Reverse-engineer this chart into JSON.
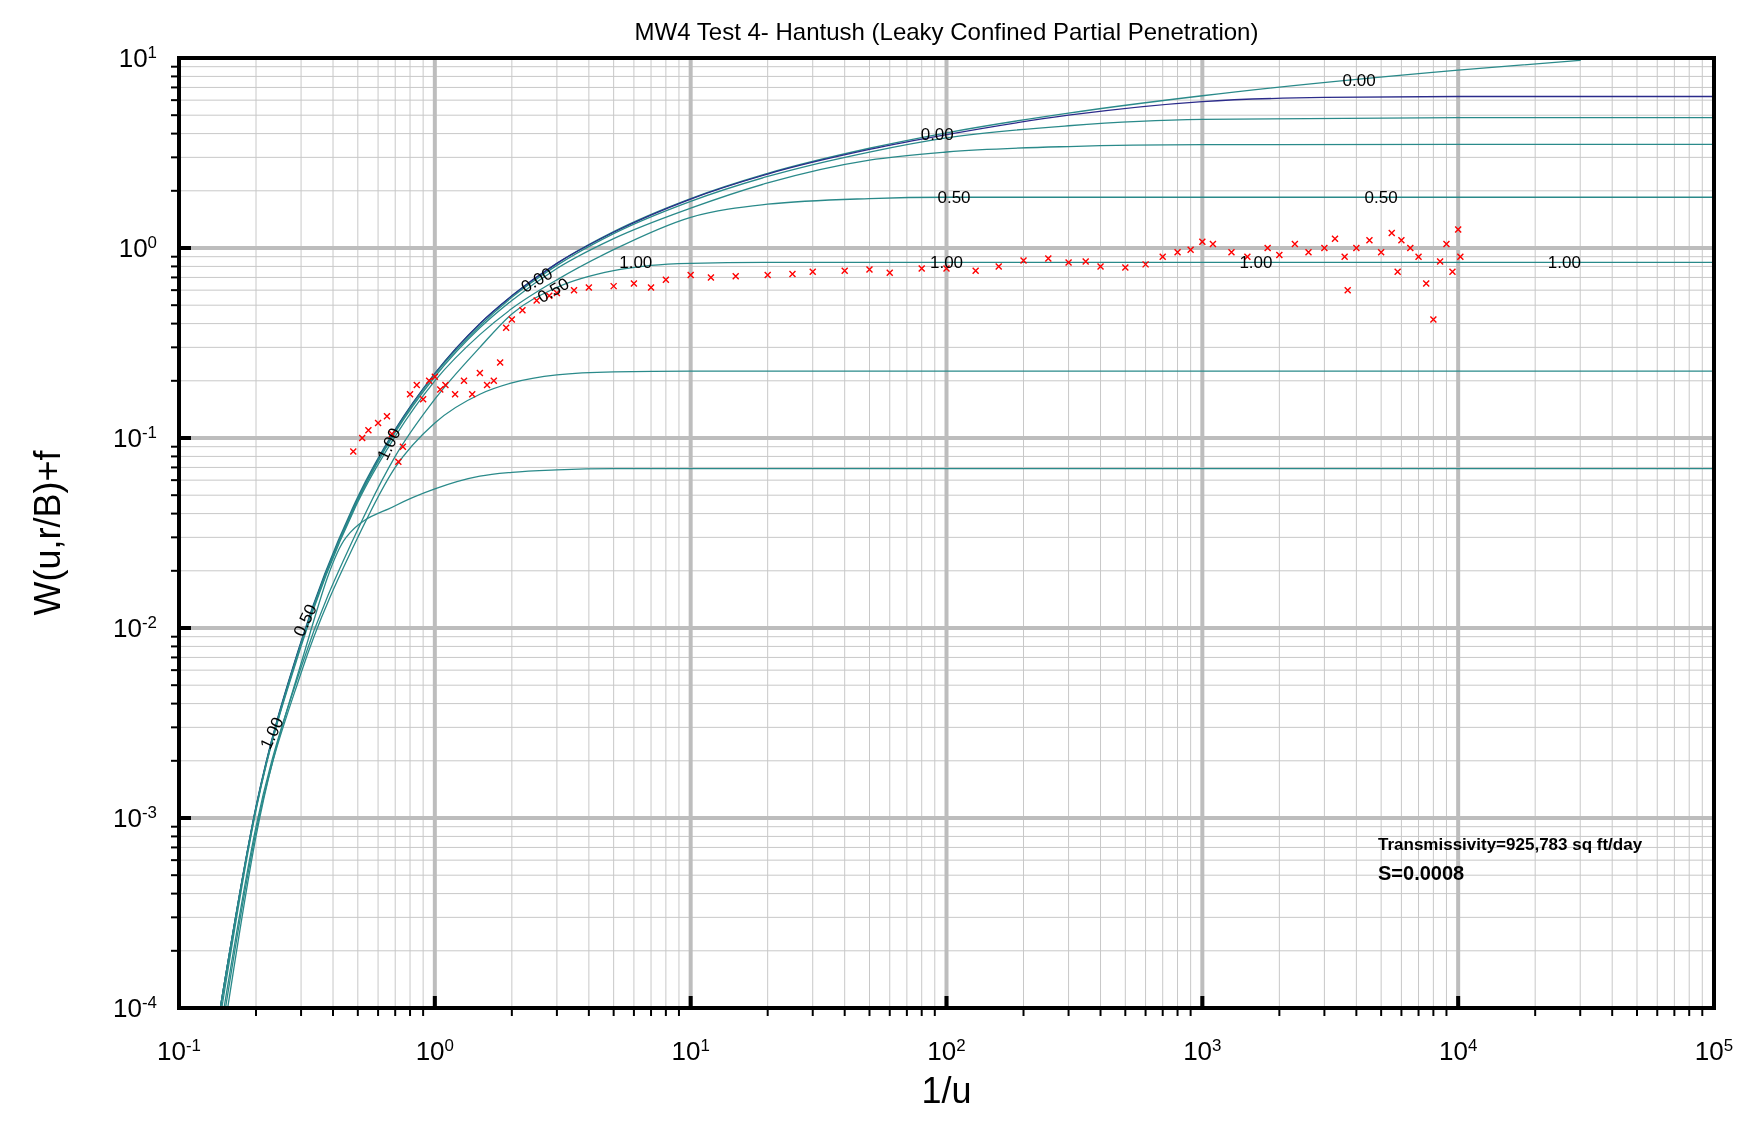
{
  "chart_data": {
    "type": "line",
    "title": "MW4 Test 4- Hantush (Leaky Confined Partial Penetration)",
    "xlabel": "1/u",
    "ylabel": "W(u,r/B)+f",
    "log": "xy",
    "grid": true,
    "xlim": [
      0.1,
      100000
    ],
    "ylim": [
      0.0001,
      10
    ],
    "xticks": [
      {
        "value": 0.1,
        "label": "10$^{-1}$"
      },
      {
        "value": 1,
        "label": "10$^{0}$"
      },
      {
        "value": 10,
        "label": "10$^{1}$"
      },
      {
        "value": 100,
        "label": "10$^{2}$"
      },
      {
        "value": 1000,
        "label": "10$^{3}$"
      },
      {
        "value": 10000,
        "label": "10$^{4}$"
      },
      {
        "value": 100000,
        "label": "10$^{5}$"
      }
    ],
    "yticks": [
      {
        "value": 0.0001,
        "label": "10$^{-4}$"
      },
      {
        "value": 0.001,
        "label": "10$^{-3}$"
      },
      {
        "value": 0.01,
        "label": "10$^{-2}$"
      },
      {
        "value": 0.1,
        "label": "10$^{-1}$"
      },
      {
        "value": 1,
        "label": "10$^{0}$"
      },
      {
        "value": 10,
        "label": "10$^{1}$"
      }
    ],
    "series": [
      {
        "color": "#2a8a8a",
        "x": [
          0.145,
          0.2,
          0.3,
          0.5,
          0.7,
          1,
          1.5,
          2,
          3,
          5,
          10,
          20,
          50,
          100,
          300,
          1000,
          10000,
          30000
        ],
        "values": [
          0.0001,
          0.00115,
          0.0085,
          0.049,
          0.111,
          0.219,
          0.4,
          0.56,
          0.83,
          1.22,
          1.82,
          2.47,
          3.35,
          4.04,
          5.13,
          6.33,
          8.63,
          9.73
        ]
      },
      {
        "color": "#2b2b8a",
        "x": [
          0.145,
          0.2,
          0.3,
          0.5,
          0.7,
          1,
          1.5,
          2,
          3,
          5,
          10,
          20,
          50,
          100,
          300,
          1000,
          3000,
          10000,
          100000
        ],
        "values": [
          0.0001,
          0.00114,
          0.0084,
          0.048,
          0.11,
          0.218,
          0.4,
          0.56,
          0.83,
          1.21,
          1.81,
          2.45,
          3.3,
          3.95,
          5.0,
          5.9,
          6.2,
          6.27,
          6.27
        ]
      },
      {
        "color": "#2a8a8a",
        "x": [
          0.145,
          0.2,
          0.3,
          0.5,
          0.7,
          1,
          1.5,
          2,
          3,
          5,
          10,
          20,
          50,
          100,
          300,
          1000,
          10000,
          100000
        ],
        "values": [
          0.0001,
          0.00113,
          0.0083,
          0.048,
          0.109,
          0.216,
          0.39,
          0.55,
          0.81,
          1.19,
          1.76,
          2.38,
          3.2,
          3.8,
          4.4,
          4.75,
          4.85,
          4.85
        ]
      },
      {
        "color": "#2a8a8a",
        "x": [
          0.145,
          0.2,
          0.3,
          0.5,
          0.7,
          1,
          1.5,
          2,
          3,
          5,
          10,
          20,
          50,
          100,
          300,
          1000,
          10000,
          100000
        ],
        "values": [
          0.0001,
          0.00112,
          0.0082,
          0.047,
          0.107,
          0.21,
          0.38,
          0.53,
          0.78,
          1.12,
          1.62,
          2.2,
          2.9,
          3.2,
          3.42,
          3.5,
          3.51,
          3.51
        ]
      },
      {
        "color": "#2a8a8a",
        "x": [
          0.147,
          0.2,
          0.3,
          0.5,
          0.7,
          1,
          1.5,
          2,
          3,
          5,
          10,
          20,
          50,
          100,
          100000
        ],
        "values": [
          0.0001,
          0.0011,
          0.008,
          0.046,
          0.102,
          0.2,
          0.35,
          0.48,
          0.68,
          0.98,
          1.45,
          1.7,
          1.82,
          1.85,
          1.85
        ]
      },
      {
        "color": "#2a8a8a",
        "x": [
          0.15,
          0.2,
          0.3,
          0.5,
          0.7,
          1,
          1.5,
          2,
          3,
          5,
          7,
          10,
          20,
          100000
        ],
        "values": [
          0.0001,
          0.0009,
          0.0062,
          0.033,
          0.08,
          0.16,
          0.3,
          0.45,
          0.62,
          0.76,
          0.81,
          0.83,
          0.84,
          0.84
        ]
      },
      {
        "color": "#2a8a8a",
        "x": [
          0.152,
          0.2,
          0.3,
          0.5,
          0.7,
          1,
          1.5,
          2,
          3,
          5,
          10,
          100000
        ],
        "values": [
          0.0001,
          0.00085,
          0.0058,
          0.03,
          0.07,
          0.12,
          0.17,
          0.195,
          0.215,
          0.223,
          0.225,
          0.225
        ]
      },
      {
        "color": "#2a8a8a",
        "x": [
          0.155,
          0.2,
          0.3,
          0.45,
          0.7,
          1,
          1.5,
          2,
          3,
          5,
          100000
        ],
        "values": [
          0.0001,
          0.0008,
          0.0065,
          0.03,
          0.044,
          0.054,
          0.063,
          0.066,
          0.068,
          0.069,
          0.069
        ]
      },
      {
        "type": "scatter",
        "color": "#ff0000",
        "marker": "cross",
        "x": [
          0.48,
          0.52,
          0.55,
          0.6,
          0.65,
          0.68,
          0.72,
          0.75,
          0.8,
          0.85,
          0.9,
          0.95,
          1,
          1.05,
          1.1,
          1.2,
          1.3,
          1.4,
          1.5,
          1.6,
          1.7,
          1.8,
          1.9,
          2,
          2.2,
          2.5,
          2.8,
          3,
          3.5,
          4,
          5,
          6,
          7,
          8,
          10,
          12,
          15,
          20,
          25,
          30,
          40,
          50,
          60,
          80,
          100,
          130,
          160,
          200,
          250,
          300,
          350,
          400,
          500,
          600,
          700,
          800,
          900,
          1000,
          1100,
          1300,
          1500,
          1800,
          2000,
          2300,
          2600,
          3000,
          3300,
          3600,
          3700,
          4000,
          4500,
          5000,
          5500,
          5800,
          6000,
          6500,
          7000,
          7500,
          8000,
          8500,
          9000,
          9500,
          10000,
          10200
        ],
        "values": [
          0.085,
          0.1,
          0.11,
          0.12,
          0.13,
          0.105,
          0.075,
          0.09,
          0.17,
          0.19,
          0.16,
          0.2,
          0.21,
          0.18,
          0.19,
          0.17,
          0.2,
          0.17,
          0.22,
          0.19,
          0.2,
          0.25,
          0.38,
          0.42,
          0.47,
          0.53,
          0.56,
          0.58,
          0.6,
          0.62,
          0.63,
          0.65,
          0.62,
          0.68,
          0.72,
          0.7,
          0.71,
          0.72,
          0.73,
          0.75,
          0.76,
          0.77,
          0.74,
          0.78,
          0.78,
          0.76,
          0.8,
          0.86,
          0.88,
          0.84,
          0.85,
          0.8,
          0.79,
          0.82,
          0.9,
          0.95,
          0.98,
          1.08,
          1.05,
          0.95,
          0.9,
          1,
          0.92,
          1.05,
          0.95,
          1,
          1.12,
          0.9,
          0.6,
          1,
          1.1,
          0.95,
          1.2,
          0.75,
          1.1,
          1,
          0.9,
          0.65,
          0.42,
          0.85,
          1.05,
          0.75,
          1.25,
          0.9
        ]
      }
    ],
    "annotations": [
      {
        "text": "0.00",
        "x": 4100,
        "y": 7.7
      },
      {
        "text": "0.00",
        "x": 92,
        "y": 4.0
      },
      {
        "text": "0.50",
        "x": 107,
        "y": 1.85
      },
      {
        "text": "0.50",
        "x": 5000,
        "y": 1.85
      },
      {
        "text": "1.00",
        "x": 6.1,
        "y": 0.84
      },
      {
        "text": "1.00",
        "x": 100,
        "y": 0.84
      },
      {
        "text": "1.00",
        "x": 1620,
        "y": 0.84
      },
      {
        "text": "1.00",
        "x": 26000,
        "y": 0.84
      },
      {
        "text": "0.00",
        "x": 2.5,
        "y": 0.68
      },
      {
        "text": "0.50",
        "x": 2.9,
        "y": 0.6
      },
      {
        "text": "1.00",
        "x": 0.66,
        "y": 0.093
      },
      {
        "text": "0.50",
        "x": 0.31,
        "y": 0.011
      },
      {
        "text": "1.00",
        "x": 0.23,
        "y": 0.0028
      },
      "Transmissivity=925,783 sq ft/day",
      "S=0.0008"
    ]
  }
}
